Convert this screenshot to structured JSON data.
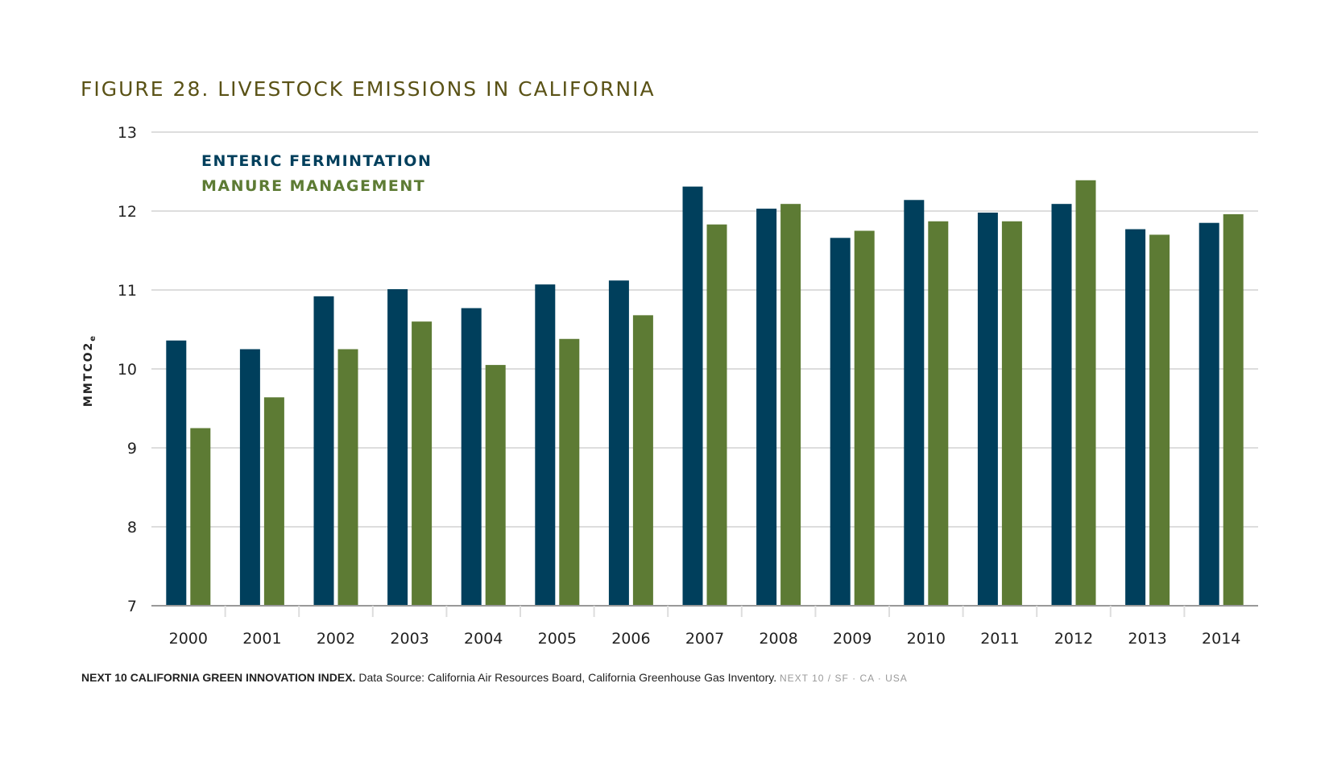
{
  "chart_data": {
    "type": "bar",
    "title": "FIGURE 28. LIVESTOCK EMISSIONS IN CALIFORNIA",
    "ylabel": "MMTCO2e",
    "ylim": [
      7,
      13
    ],
    "yticks": [
      7,
      8,
      9,
      10,
      11,
      12,
      13
    ],
    "grid": true,
    "legend_position": "top-left",
    "categories": [
      "2000",
      "2001",
      "2002",
      "2003",
      "2004",
      "2005",
      "2006",
      "2007",
      "2008",
      "2009",
      "2010",
      "2011",
      "2012",
      "2013",
      "2014"
    ],
    "series": [
      {
        "name": "ENTERIC FERMINTATION",
        "color": "#003f5c",
        "values": [
          10.36,
          10.25,
          10.92,
          11.01,
          10.77,
          11.07,
          11.12,
          12.31,
          12.03,
          11.66,
          12.14,
          11.98,
          12.09,
          11.77,
          11.85
        ]
      },
      {
        "name": "MANURE MANAGEMENT",
        "color": "#5d7b34",
        "values": [
          9.25,
          9.64,
          10.25,
          10.6,
          10.05,
          10.38,
          10.68,
          11.83,
          12.09,
          11.75,
          11.87,
          11.87,
          12.39,
          11.7,
          11.96
        ]
      }
    ]
  },
  "footer": {
    "org": "NEXT 10 CALIFORNIA GREEN INNOVATION INDEX.",
    "source": "Data Source: California Air Resources Board, California Greenhouse Gas Inventory.",
    "brand": "NEXT 10 / SF · CA · USA"
  }
}
